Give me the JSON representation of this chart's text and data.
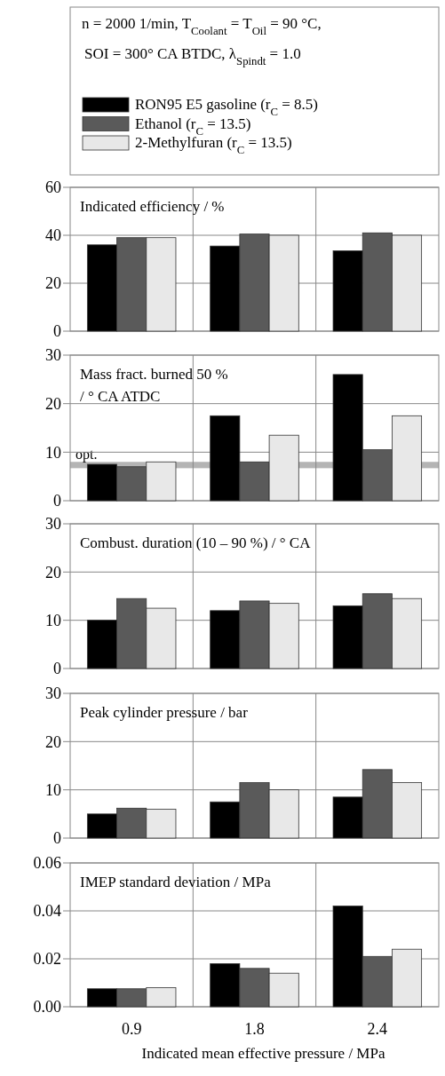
{
  "chart_data": [
    {
      "type": "bar",
      "title": "Indicated efficiency / %",
      "categories": [
        "0.9",
        "1.8",
        "2.4"
      ],
      "legend": "top",
      "annotations": [
        "n = 2000 1/min, T$_{Coolant}$ = T$_{Oil}$ = 90 °C,",
        "SOI = 300° CA BTDC, λ$_{Spindt}$ = 1.0"
      ],
      "series": [
        {
          "name": "RON95 E5 gasoline (r$_{C}$ = 8.5)",
          "color": "#000000",
          "values": [
            36,
            35.5,
            33.5
          ]
        },
        {
          "name": "Ethanol (r$_{C}$ = 13.5)",
          "color": "#5a5a5a",
          "values": [
            39,
            40.5,
            41
          ]
        },
        {
          "name": "2-Methylfuran (r$_{C}$ = 13.5)",
          "color": "#e8e8e8",
          "values": [
            39,
            40,
            40
          ]
        }
      ],
      "ylim": [
        0,
        60
      ],
      "yticks": [
        0,
        20,
        40,
        60
      ],
      "grid": true,
      "tick_labels": "y"
    },
    {
      "type": "bar",
      "title": "Mass fract. burned 50 %\n/ ° CA ATDC",
      "categories": [
        "0.9",
        "1.8",
        "2.4"
      ],
      "series": [
        {
          "color": "#000000",
          "values": [
            7.5,
            17.5,
            26
          ]
        },
        {
          "color": "#5a5a5a",
          "values": [
            7,
            8,
            10.5
          ]
        },
        {
          "color": "#e8e8e8",
          "values": [
            8,
            13.5,
            17.5
          ]
        }
      ],
      "bands": [
        {
          "axis": "y",
          "from": 6.7,
          "to": 8,
          "label": "opt.",
          "color": "#b4b4b4"
        }
      ],
      "ylim": [
        0,
        30
      ],
      "yticks": [
        0,
        10,
        20,
        30
      ],
      "grid": true,
      "tick_labels": "y"
    },
    {
      "type": "bar",
      "title": "Combust. duration (10 – 90 %) / ° CA",
      "categories": [
        "0.9",
        "1.8",
        "2.4"
      ],
      "series": [
        {
          "color": "#000000",
          "values": [
            10,
            12,
            13
          ]
        },
        {
          "color": "#5a5a5a",
          "values": [
            14.5,
            14,
            15.5
          ]
        },
        {
          "color": "#e8e8e8",
          "values": [
            12.5,
            13.5,
            14.5
          ]
        }
      ],
      "ylim": [
        0,
        30
      ],
      "yticks": [
        0,
        10,
        20,
        30
      ],
      "grid": true,
      "tick_labels": "y"
    },
    {
      "type": "bar",
      "title": "Peak cylinder pressure / bar",
      "categories": [
        "0.9",
        "1.8",
        "2.4"
      ],
      "series": [
        {
          "color": "#000000",
          "values": [
            5,
            7.5,
            8.5
          ]
        },
        {
          "color": "#5a5a5a",
          "values": [
            6.2,
            11.5,
            14.2
          ]
        },
        {
          "color": "#e8e8e8",
          "values": [
            6,
            10,
            11.5
          ]
        }
      ],
      "ylim": [
        0,
        30
      ],
      "yticks": [
        0,
        10,
        20,
        30
      ],
      "grid": true,
      "tick_labels": "y"
    },
    {
      "type": "bar",
      "title": "IMEP standard deviation / MPa",
      "categories": [
        "0.9",
        "1.8",
        "2.4"
      ],
      "xlabel": "Indicated mean effective pressure / MPa",
      "series": [
        {
          "color": "#000000",
          "values": [
            0.0075,
            0.018,
            0.042
          ]
        },
        {
          "color": "#5a5a5a",
          "values": [
            0.0075,
            0.016,
            0.021
          ]
        },
        {
          "color": "#e8e8e8",
          "values": [
            0.008,
            0.014,
            0.024
          ]
        }
      ],
      "ylim": [
        0,
        0.06
      ],
      "yticks": [
        {
          "value": 0,
          "label": "0.00"
        },
        {
          "value": 0.02,
          "label": "0.02"
        },
        {
          "value": 0.04,
          "label": "0.04"
        },
        {
          "value": 0.06,
          "label": "0.06"
        }
      ],
      "grid": true
    }
  ]
}
